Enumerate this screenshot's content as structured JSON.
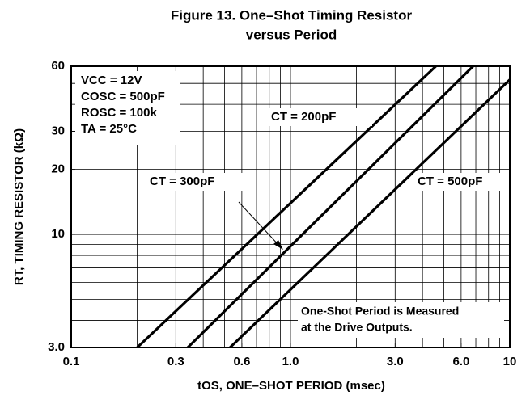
{
  "chart_data": {
    "type": "line",
    "title": [
      "Figure 13. One–Shot Timing Resistor",
      "versus Period"
    ],
    "xlabel": "tOS, ONE–SHOT PERIOD (msec)",
    "ylabel": "RT, TIMING RESISTOR (kΩ)",
    "xscale": "log",
    "yscale": "log",
    "xlim": [
      0.1,
      10
    ],
    "ylim": [
      3,
      60
    ],
    "xticks": [
      0.1,
      0.3,
      0.6,
      {
        "value": 1,
        "label": "1.0"
      },
      {
        "value": 3,
        "label": "3.0"
      },
      {
        "value": 6,
        "label": "6.0"
      },
      10
    ],
    "yticks": [
      {
        "value": 3,
        "label": "3.0"
      },
      10,
      20,
      30,
      60
    ],
    "x_gridlines": [
      0.2,
      0.3,
      0.4,
      0.5,
      0.6,
      0.7,
      0.8,
      0.9,
      1,
      2,
      3,
      4,
      5,
      6,
      7,
      8,
      9
    ],
    "y_gridlines": [
      4,
      5,
      6,
      7,
      8,
      9,
      10,
      20,
      30,
      40,
      50
    ],
    "grid": true,
    "series": [
      {
        "name": "CT = 200pF",
        "color": "#000000",
        "x": [
          0.2,
          4.6
        ],
        "values": [
          3,
          60
        ]
      },
      {
        "name": "CT = 300pF",
        "color": "#000000",
        "x": [
          0.34,
          6.8
        ],
        "values": [
          3,
          60
        ]
      },
      {
        "name": "CT = 500pF",
        "color": "#000000",
        "x": [
          0.53,
          10
        ],
        "values": [
          3,
          52
        ]
      }
    ],
    "annotations": [
      "VCC = 12V",
      "COSC = 500pF",
      "ROSC = 100k",
      "TA = 25°C"
    ],
    "note": [
      "One-Shot Period is Measured",
      "at the Drive Outputs."
    ]
  }
}
